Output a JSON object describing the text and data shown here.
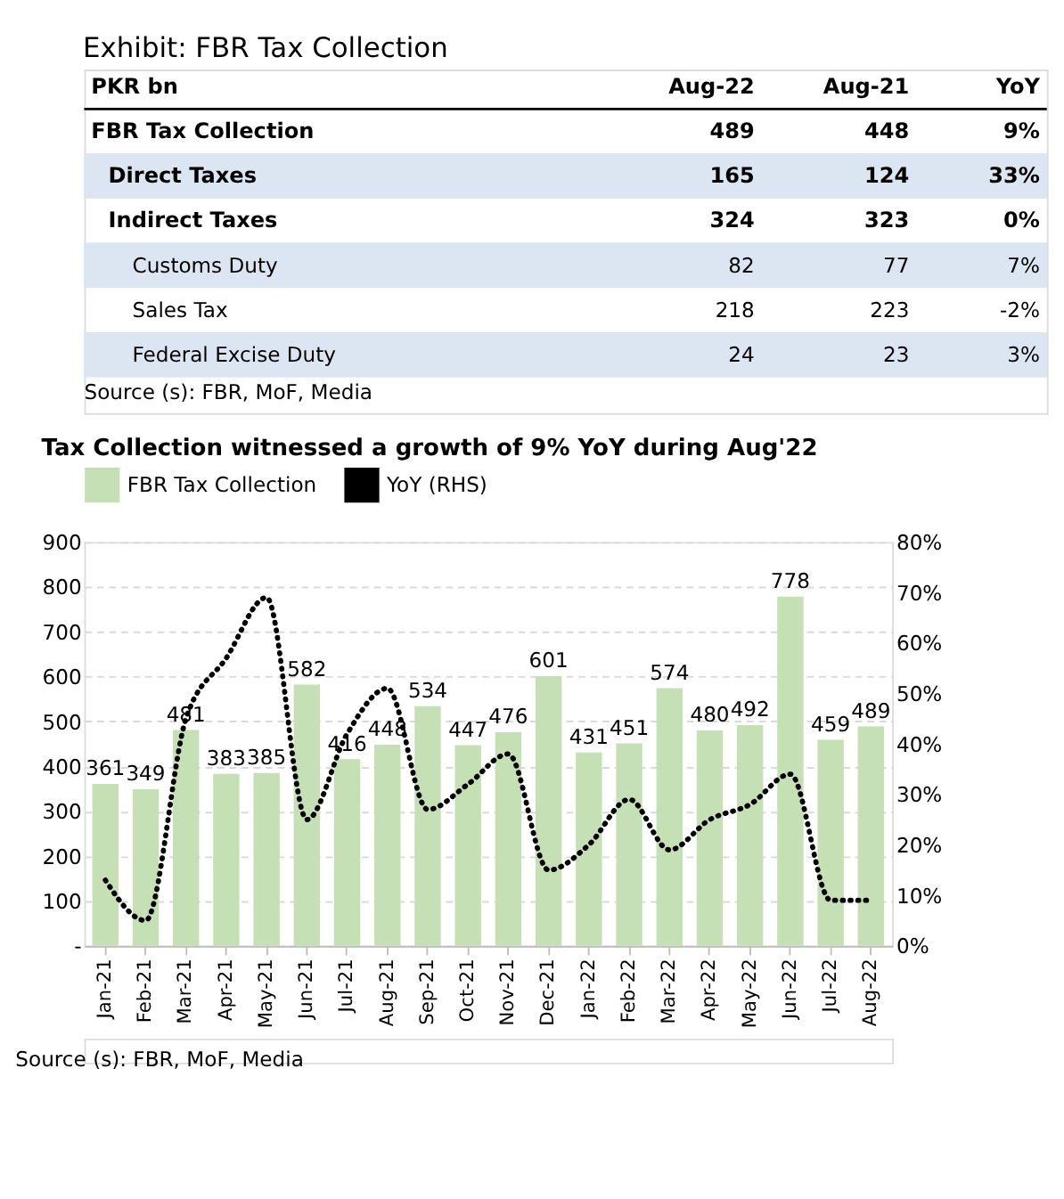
{
  "chart_data": [
    {
      "type": "other",
      "title": "Exhibit: FBR Tax Collection",
      "annotations": [
        "PKR bn",
        "Aug-22",
        "Aug-21",
        "YoY",
        "FBR Tax Collection",
        "489",
        "448",
        "9%",
        "Direct Taxes",
        "165",
        "124",
        "33%",
        "Indirect Taxes",
        "324",
        "323",
        "0%",
        "Customs Duty",
        "82",
        "77",
        "7%",
        "Sales Tax",
        "218",
        "223",
        "-2%",
        "Federal Excise Duty",
        "24",
        "23",
        "3%",
        "Source (s): FBR, MoF, Media"
      ]
    },
    {
      "type": "bar",
      "title": "Tax Collection witnessed a growth of 9% YoY during Aug'22",
      "categories": [
        "Jan-21",
        "Feb-21",
        "Mar-21",
        "Apr-21",
        "May-21",
        "Jun-21",
        "Jul-21",
        "Aug-21",
        "Sep-21",
        "Oct-21",
        "Nov-21",
        "Dec-21",
        "Jan-22",
        "Feb-22",
        "Mar-22",
        "Apr-22",
        "May-22",
        "Jun-22",
        "Jul-22",
        "Aug-22"
      ],
      "series": [
        {
          "name": "FBR Tax Collection",
          "type": "bar",
          "color": "#c5e0b4",
          "values": [
            361,
            349,
            481,
            383,
            385,
            582,
            416,
            448,
            534,
            447,
            476,
            601,
            431,
            451,
            574,
            480,
            492,
            778,
            459,
            489
          ],
          "value_labels": [
            "361",
            "349",
            "481",
            "383",
            "385",
            "582",
            "416",
            "448",
            "534",
            "447",
            "476",
            "601",
            "431",
            "451",
            "574",
            "480",
            "492",
            "778",
            "459",
            "489"
          ]
        },
        {
          "name": "YoY (RHS)",
          "type": "line",
          "axis": "y2",
          "color": "#000000",
          "line_style": "dotted",
          "values": [
            13,
            5,
            45,
            57,
            69,
            25,
            42,
            51,
            27,
            32,
            38,
            15,
            20,
            29,
            19,
            25,
            28,
            34,
            9,
            9
          ]
        }
      ],
      "ylim": [
        0,
        900
      ],
      "yticks": [
        {
          "value": 0,
          "label": "-"
        },
        100,
        200,
        300,
        400,
        500,
        600,
        700,
        800,
        900
      ],
      "y2lim": [
        0,
        80
      ],
      "y2ticks": [
        {
          "value": 0,
          "label": "0%"
        },
        {
          "value": 10,
          "label": "10%"
        },
        {
          "value": 20,
          "label": "20%"
        },
        {
          "value": 30,
          "label": "30%"
        },
        {
          "value": 40,
          "label": "40%"
        },
        {
          "value": 50,
          "label": "50%"
        },
        {
          "value": 60,
          "label": "60%"
        },
        {
          "value": 70,
          "label": "70%"
        },
        {
          "value": 80,
          "label": "80%"
        }
      ],
      "grid": "y",
      "legend": "top",
      "annotations": [
        "Source (s): FBR, MoF, Media"
      ]
    }
  ]
}
